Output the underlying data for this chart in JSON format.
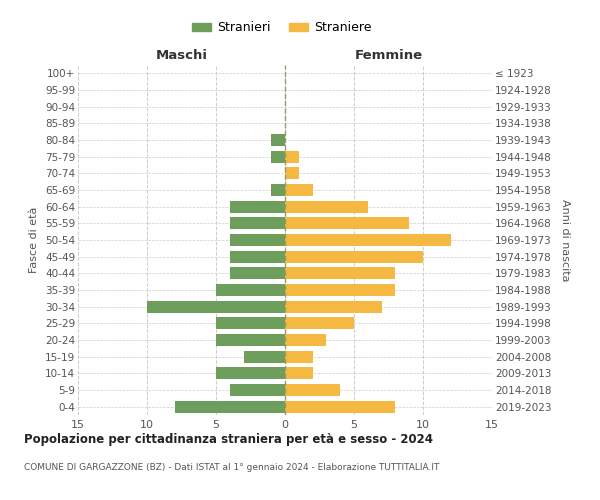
{
  "age_groups": [
    "0-4",
    "5-9",
    "10-14",
    "15-19",
    "20-24",
    "25-29",
    "30-34",
    "35-39",
    "40-44",
    "45-49",
    "50-54",
    "55-59",
    "60-64",
    "65-69",
    "70-74",
    "75-79",
    "80-84",
    "85-89",
    "90-94",
    "95-99",
    "100+"
  ],
  "birth_years": [
    "2019-2023",
    "2014-2018",
    "2009-2013",
    "2004-2008",
    "1999-2003",
    "1994-1998",
    "1989-1993",
    "1984-1988",
    "1979-1983",
    "1974-1978",
    "1969-1973",
    "1964-1968",
    "1959-1963",
    "1954-1958",
    "1949-1953",
    "1944-1948",
    "1939-1943",
    "1934-1938",
    "1929-1933",
    "1924-1928",
    "≤ 1923"
  ],
  "males": [
    8,
    4,
    5,
    3,
    5,
    5,
    10,
    5,
    4,
    4,
    4,
    4,
    4,
    1,
    0,
    1,
    1,
    0,
    0,
    0,
    0
  ],
  "females": [
    8,
    4,
    2,
    2,
    3,
    5,
    7,
    8,
    8,
    10,
    12,
    9,
    6,
    2,
    1,
    1,
    0,
    0,
    0,
    0,
    0
  ],
  "male_color": "#6e9e5b",
  "female_color": "#f5b942",
  "bar_height": 0.72,
  "xlim": 15,
  "title": "Popolazione per cittadinanza straniera per età e sesso - 2024",
  "subtitle": "COMUNE DI GARGAZZONE (BZ) - Dati ISTAT al 1° gennaio 2024 - Elaborazione TUTTITALIA.IT",
  "left_header": "Maschi",
  "right_header": "Femmine",
  "left_ylabel": "Fasce di età",
  "right_ylabel": "Anni di nascita",
  "legend_male": "Stranieri",
  "legend_female": "Straniere",
  "grid_color": "#cccccc",
  "background_color": "#ffffff",
  "text_color": "#555555",
  "header_color": "#333333"
}
